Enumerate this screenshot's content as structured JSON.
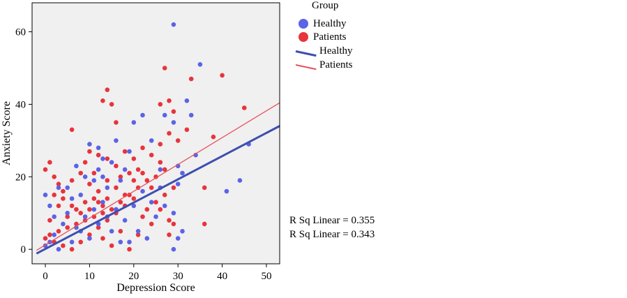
{
  "chart_data": {
    "type": "scatter",
    "xlabel": "Depression Score",
    "ylabel": "Anxiety Score",
    "xlim": [
      -3,
      53
    ],
    "ylim": [
      -4,
      68
    ],
    "x_ticks": [
      0,
      10,
      20,
      30,
      40,
      50
    ],
    "y_ticks": [
      0,
      20,
      40,
      60
    ],
    "grid": false,
    "plot_background": "#f0f0f0",
    "legend": {
      "title": "Group",
      "placement": "right",
      "entries": [
        {
          "label": "Healthy",
          "kind": "marker",
          "color": "#5b63e6"
        },
        {
          "label": "Patients",
          "kind": "marker",
          "color": "#e8343c"
        },
        {
          "label": "Healthy",
          "kind": "line",
          "color": "#3c4fb0"
        },
        {
          "label": "Patients",
          "kind": "line",
          "color": "#e8505a"
        }
      ]
    },
    "series": [
      {
        "name": "Healthy",
        "color": "#5b63e6",
        "points": [
          [
            29,
            62
          ],
          [
            35,
            51
          ],
          [
            32,
            41
          ],
          [
            46,
            29
          ],
          [
            44,
            19
          ],
          [
            41,
            16
          ],
          [
            34,
            26
          ],
          [
            31,
            21
          ],
          [
            33,
            37
          ],
          [
            29,
            35
          ],
          [
            27,
            37
          ],
          [
            30,
            23
          ],
          [
            26,
            22
          ],
          [
            30,
            18
          ],
          [
            31,
            5
          ],
          [
            29,
            10
          ],
          [
            30,
            3
          ],
          [
            29,
            0
          ],
          [
            26,
            17
          ],
          [
            24,
            30
          ],
          [
            22,
            37
          ],
          [
            20,
            35
          ],
          [
            19,
            27
          ],
          [
            18,
            22
          ],
          [
            16,
            30
          ],
          [
            12,
            28
          ],
          [
            13,
            25
          ],
          [
            10,
            29
          ],
          [
            11,
            19
          ],
          [
            12,
            22
          ],
          [
            14,
            17
          ],
          [
            13,
            13
          ],
          [
            8,
            15
          ],
          [
            6,
            14
          ],
          [
            5,
            10
          ],
          [
            9,
            9
          ],
          [
            4,
            7
          ],
          [
            7,
            6
          ],
          [
            2,
            4
          ],
          [
            1,
            2
          ],
          [
            0,
            1
          ],
          [
            3,
            0
          ],
          [
            6,
            2
          ],
          [
            8,
            5
          ],
          [
            10,
            3
          ],
          [
            12,
            7
          ],
          [
            14,
            9
          ],
          [
            16,
            11
          ],
          [
            18,
            8
          ],
          [
            20,
            12
          ],
          [
            22,
            16
          ],
          [
            24,
            13
          ],
          [
            21,
            5
          ],
          [
            19,
            2
          ],
          [
            23,
            3
          ],
          [
            25,
            9
          ],
          [
            27,
            12
          ],
          [
            15,
            5
          ],
          [
            17,
            2
          ],
          [
            11,
            11
          ],
          [
            3,
            17
          ],
          [
            0,
            15
          ],
          [
            1,
            12
          ],
          [
            5,
            17
          ],
          [
            2,
            9
          ],
          [
            9,
            20
          ],
          [
            7,
            23
          ],
          [
            15,
            24
          ],
          [
            17,
            19
          ],
          [
            13,
            20
          ]
        ]
      },
      {
        "name": "Patients",
        "color": "#e8343c",
        "points": [
          [
            40,
            48
          ],
          [
            33,
            47
          ],
          [
            27,
            50
          ],
          [
            45,
            39
          ],
          [
            38,
            31
          ],
          [
            36,
            17
          ],
          [
            36,
            7
          ],
          [
            28,
            41
          ],
          [
            29,
            38
          ],
          [
            26,
            40
          ],
          [
            14,
            44
          ],
          [
            13,
            41
          ],
          [
            15,
            40
          ],
          [
            16,
            35
          ],
          [
            6,
            33
          ],
          [
            10,
            27
          ],
          [
            12,
            26
          ],
          [
            14,
            25
          ],
          [
            16,
            23
          ],
          [
            18,
            27
          ],
          [
            20,
            25
          ],
          [
            22,
            28
          ],
          [
            24,
            26
          ],
          [
            26,
            29
          ],
          [
            28,
            32
          ],
          [
            30,
            30
          ],
          [
            32,
            33
          ],
          [
            25,
            20
          ],
          [
            27,
            22
          ],
          [
            23,
            19
          ],
          [
            21,
            17
          ],
          [
            19,
            15
          ],
          [
            17,
            13
          ],
          [
            15,
            11
          ],
          [
            13,
            10
          ],
          [
            11,
            9
          ],
          [
            9,
            8
          ],
          [
            7,
            7
          ],
          [
            5,
            6
          ],
          [
            3,
            5
          ],
          [
            1,
            4
          ],
          [
            0,
            3
          ],
          [
            2,
            2
          ],
          [
            4,
            1
          ],
          [
            6,
            0
          ],
          [
            8,
            2
          ],
          [
            10,
            4
          ],
          [
            12,
            6
          ],
          [
            14,
            8
          ],
          [
            16,
            10
          ],
          [
            18,
            12
          ],
          [
            20,
            14
          ],
          [
            22,
            9
          ],
          [
            24,
            7
          ],
          [
            26,
            11
          ],
          [
            28,
            8
          ],
          [
            1,
            24
          ],
          [
            0,
            22
          ],
          [
            2,
            20
          ],
          [
            3,
            18
          ],
          [
            4,
            16
          ],
          [
            6,
            19
          ],
          [
            8,
            21
          ],
          [
            10,
            18
          ],
          [
            12,
            16
          ],
          [
            14,
            14
          ],
          [
            16,
            17
          ],
          [
            18,
            15
          ],
          [
            20,
            19
          ],
          [
            22,
            21
          ],
          [
            24,
            17
          ],
          [
            13,
            3
          ],
          [
            15,
            1
          ],
          [
            17,
            5
          ],
          [
            19,
            0
          ],
          [
            21,
            4
          ],
          [
            23,
            11
          ],
          [
            25,
            13
          ],
          [
            27,
            15
          ],
          [
            29,
            17
          ],
          [
            9,
            13
          ],
          [
            7,
            11
          ],
          [
            5,
            9
          ],
          [
            3,
            12
          ],
          [
            1,
            8
          ],
          [
            11,
            14
          ],
          [
            13,
            12
          ],
          [
            4,
            14
          ],
          [
            2,
            15
          ],
          [
            6,
            12
          ],
          [
            8,
            10
          ],
          [
            10,
            11
          ],
          [
            12,
            13
          ],
          [
            14,
            19
          ],
          [
            9,
            24
          ],
          [
            11,
            21
          ],
          [
            17,
            20
          ],
          [
            19,
            21
          ],
          [
            21,
            22
          ],
          [
            26,
            24
          ],
          [
            29,
            7
          ],
          [
            28,
            4
          ]
        ]
      }
    ],
    "fit_lines": [
      {
        "name": "Healthy",
        "color": "#3c4fb0",
        "width": 3,
        "intercept": 0.1,
        "slope": 0.64,
        "r_squared_label": "R Sq Linear = 0.355"
      },
      {
        "name": "Patients",
        "color": "#e8505a",
        "width": 1.3,
        "intercept": 1.2,
        "slope": 0.74,
        "r_squared_label": "R Sq Linear = 0.343"
      }
    ]
  }
}
